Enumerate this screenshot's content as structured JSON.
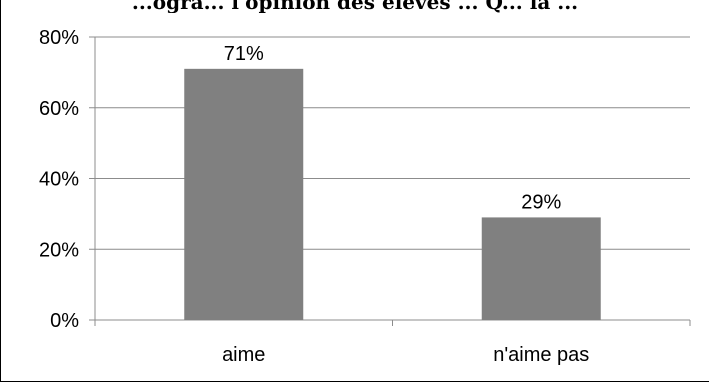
{
  "chart_data": {
    "type": "bar",
    "title": "...ogra... l'opinion des élèves ... Q... la ...",
    "categories": [
      "aime",
      "n'aime pas"
    ],
    "values": [
      71,
      29
    ],
    "data_labels": [
      "71%",
      "29%"
    ],
    "ylim": [
      0,
      80
    ],
    "yticks": [
      "0%",
      "20%",
      "40%",
      "60%",
      "80%"
    ],
    "ytick_values": [
      0,
      20,
      40,
      60,
      80
    ],
    "grid": true,
    "bar_color": "#808080",
    "grid_color": "#8c8c8c",
    "xlabel": "",
    "ylabel": ""
  }
}
